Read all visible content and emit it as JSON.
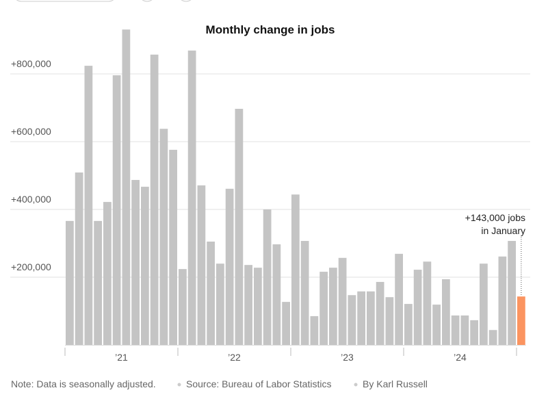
{
  "chart_data": {
    "type": "bar",
    "title": "Monthly change in jobs",
    "categories": [
      null,
      null,
      null,
      null,
      null,
      null,
      null,
      null,
      null,
      null,
      null,
      null,
      null,
      null,
      null,
      null,
      null,
      null,
      null,
      null,
      null,
      null,
      null,
      null,
      null,
      null,
      null,
      null,
      null,
      null,
      null,
      null,
      null,
      null,
      null,
      null,
      null,
      null,
      null,
      null,
      null,
      null,
      null,
      null,
      null,
      null,
      null,
      null,
      null
    ],
    "values": [
      366000,
      509000,
      824000,
      366000,
      422000,
      796000,
      931000,
      487000,
      467000,
      857000,
      638000,
      576000,
      224000,
      869000,
      471000,
      305000,
      240000,
      461000,
      697000,
      236000,
      228000,
      400000,
      297000,
      127000,
      444000,
      307000,
      85000,
      216000,
      228000,
      257000,
      147000,
      158000,
      158000,
      186000,
      141000,
      269000,
      121000,
      222000,
      246000,
      119000,
      194000,
      87000,
      87000,
      73000,
      240000,
      44000,
      261000,
      307000,
      143000
    ],
    "colors": [
      "#c4c4c4",
      "#c4c4c4",
      "#c4c4c4",
      "#c4c4c4",
      "#c4c4c4",
      "#c4c4c4",
      "#c4c4c4",
      "#c4c4c4",
      "#c4c4c4",
      "#c4c4c4",
      "#c4c4c4",
      "#c4c4c4",
      "#c4c4c4",
      "#c4c4c4",
      "#c4c4c4",
      "#c4c4c4",
      "#c4c4c4",
      "#c4c4c4",
      "#c4c4c4",
      "#c4c4c4",
      "#c4c4c4",
      "#c4c4c4",
      "#c4c4c4",
      "#c4c4c4",
      "#c4c4c4",
      "#c4c4c4",
      "#c4c4c4",
      "#c4c4c4",
      "#c4c4c4",
      "#c4c4c4",
      "#c4c4c4",
      "#c4c4c4",
      "#c4c4c4",
      "#c4c4c4",
      "#c4c4c4",
      "#c4c4c4",
      "#c4c4c4",
      "#c4c4c4",
      "#c4c4c4",
      "#c4c4c4",
      "#c4c4c4",
      "#c4c4c4",
      "#c4c4c4",
      "#c4c4c4",
      "#c4c4c4",
      "#c4c4c4",
      "#c4c4c4",
      "#c4c4c4",
      "#fb9460"
    ],
    "x_labels": [
      "’21",
      "’22",
      "’23",
      "’24"
    ],
    "ylim": [
      0,
      950000
    ],
    "yticks": [
      {
        "value": 200000,
        "label": "+200,000"
      },
      {
        "value": 400000,
        "label": "+400,000"
      },
      {
        "value": 600000,
        "label": "+600,000"
      },
      {
        "value": 800000,
        "label": "+800,000"
      }
    ],
    "grid": true,
    "annotation": [
      "+143,000 jobs",
      "in January"
    ],
    "footer": {
      "note": "Note: Data is seasonally adjusted.",
      "source": "Source: Bureau of Labor Statistics",
      "byline": "By Karl Russell"
    }
  }
}
